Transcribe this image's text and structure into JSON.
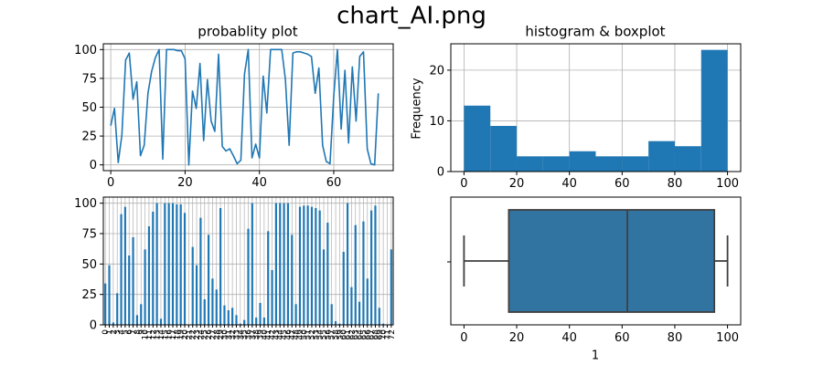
{
  "figure": {
    "suptitle": "chart_AI.png"
  },
  "chart_data": [
    {
      "id": "line",
      "type": "line",
      "title": "probablity plot",
      "xlabel": "",
      "ylabel": "",
      "xlim": [
        -2,
        76
      ],
      "ylim": [
        -5,
        105
      ],
      "xticks": [
        0,
        20,
        40,
        60
      ],
      "yticks": [
        0,
        25,
        50,
        75,
        100
      ],
      "grid": true,
      "color": "#1f77b4",
      "series": [
        {
          "x": [
            0,
            1,
            2,
            3,
            4,
            5,
            6,
            7,
            8,
            9,
            10,
            11,
            12,
            13,
            14,
            15,
            16,
            17,
            18,
            19,
            20,
            21,
            22,
            23,
            24,
            25,
            26,
            27,
            28,
            29,
            30,
            31,
            32,
            33,
            34,
            35,
            36,
            37,
            38,
            39,
            40,
            41,
            42,
            43,
            44,
            45,
            46,
            47,
            48,
            49,
            50,
            51,
            52,
            53,
            54,
            55,
            56,
            57,
            58,
            59,
            60,
            61,
            62,
            63,
            64,
            65,
            66,
            67,
            68,
            69,
            70,
            71,
            72
          ],
          "y": [
            34,
            49,
            2,
            26,
            91,
            97,
            57,
            72,
            8,
            17,
            62,
            81,
            93,
            100,
            5,
            100,
            100,
            100,
            99,
            99,
            92,
            0,
            64,
            49,
            88,
            21,
            74,
            38,
            29,
            96,
            16,
            12,
            14,
            8,
            1,
            4,
            79,
            100,
            6,
            18,
            6,
            77,
            45,
            100,
            100,
            100,
            100,
            74,
            17,
            97,
            98,
            98,
            97,
            96,
            94,
            62,
            84,
            17,
            3,
            1,
            60,
            100,
            31,
            82,
            19,
            85,
            38,
            94,
            98,
            14,
            1,
            0,
            62
          ]
        }
      ]
    },
    {
      "id": "hist",
      "type": "bar",
      "title": "histogram & boxplot",
      "xlabel": "",
      "ylabel": "Frequency",
      "xlim": [
        -5,
        105
      ],
      "ylim": [
        0,
        25.2
      ],
      "xticks": [
        0,
        20,
        40,
        60,
        80,
        100
      ],
      "yticks": [
        0,
        10,
        20
      ],
      "grid": true,
      "color": "#1f77b4",
      "bin_edges": [
        0,
        10,
        20,
        30,
        40,
        50,
        60,
        70,
        80,
        90,
        100
      ],
      "values": [
        13,
        9,
        3,
        3,
        4,
        3,
        3,
        6,
        5,
        24
      ]
    },
    {
      "id": "vbars",
      "type": "bar",
      "title": "",
      "xlabel": "",
      "ylabel": "",
      "ylim": [
        0,
        105
      ],
      "yticks": [
        0,
        25,
        50,
        75,
        100
      ],
      "grid": true,
      "color": "#1f77b4",
      "note": "same 73 values as the line plot, one bar per index",
      "categories": [
        "0",
        "1",
        "2",
        "3",
        "4",
        "5",
        "6",
        "7",
        "8",
        "9",
        "10",
        "11",
        "12",
        "13",
        "14",
        "15",
        "16",
        "17",
        "18",
        "19",
        "20",
        "21",
        "22",
        "23",
        "24",
        "25",
        "26",
        "27",
        "28",
        "29",
        "30",
        "31",
        "32",
        "33",
        "34",
        "35",
        "36",
        "37",
        "38",
        "39",
        "40",
        "41",
        "42",
        "43",
        "44",
        "45",
        "46",
        "47",
        "48",
        "49",
        "50",
        "51",
        "52",
        "53",
        "54",
        "55",
        "56",
        "57",
        "58",
        "59",
        "60",
        "61",
        "62",
        "63",
        "64",
        "65",
        "66",
        "67",
        "68",
        "69",
        "70",
        "71",
        "72"
      ]
    },
    {
      "id": "box",
      "type": "boxplot",
      "title": "",
      "xlabel": "1",
      "ylabel": "",
      "xlim": [
        -5,
        105
      ],
      "xticks": [
        0,
        20,
        40,
        60,
        80,
        100
      ],
      "ytick_label": "",
      "color": "#3274a1",
      "stats": {
        "whislo": 0,
        "q1": 17,
        "median": 62,
        "q3": 95,
        "whishi": 100
      }
    }
  ]
}
